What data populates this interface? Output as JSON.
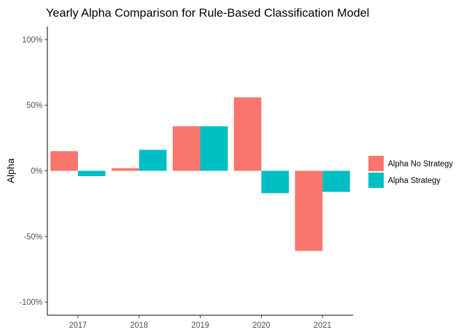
{
  "chart_data": {
    "type": "bar",
    "title": "Yearly Alpha Comparison for Rule-Based Classification Model",
    "xlabel": "",
    "ylabel": "Alpha",
    "categories": [
      "2017",
      "2018",
      "2019",
      "2020",
      "2021"
    ],
    "series": [
      {
        "name": "Alpha No Strategy",
        "color": "#F8766D",
        "values": [
          0.15,
          0.02,
          0.34,
          0.56,
          -0.61
        ]
      },
      {
        "name": "Alpha Strategy",
        "color": "#00BFC4",
        "values": [
          -0.04,
          0.16,
          0.34,
          -0.17,
          -0.16
        ]
      }
    ],
    "ylim": [
      -1.1,
      1.1
    ],
    "yticks": [
      -1.0,
      -0.5,
      0.0,
      0.5,
      1.0
    ],
    "ytick_labels": [
      "-100%",
      "-50%",
      "0%",
      "50%",
      "100%"
    ],
    "grid": false,
    "legend_position": "right"
  }
}
